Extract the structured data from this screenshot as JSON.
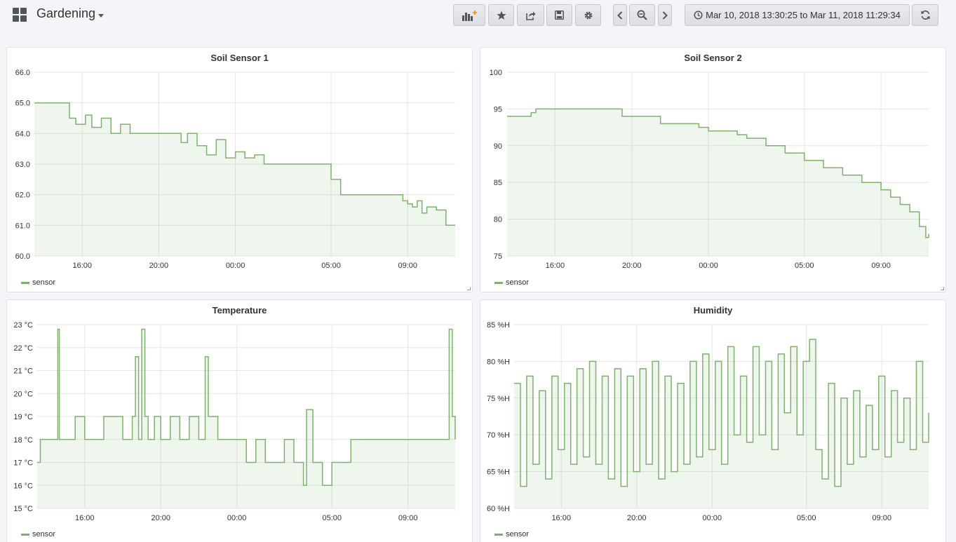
{
  "header": {
    "title": "Gardening",
    "time_range": "Mar 10, 2018 13:30:25 to Mar 11, 2018 11:29:34",
    "buttons": [
      "add-panel-icon",
      "star-icon",
      "share-icon",
      "save-icon",
      "gear-icon",
      "chevron-left-icon",
      "zoom-out-icon",
      "chevron-right-icon",
      "clock-icon",
      "refresh-icon"
    ]
  },
  "colors": {
    "series": "#7eb26d",
    "fill": "rgba(126,178,109,0.12)",
    "grid": "#e6e6e6"
  },
  "panels": [
    {
      "title": "Soil Sensor 1",
      "legend": "sensor",
      "chart_data": {
        "type": "line",
        "title": "Soil Sensor 1",
        "x_start": "2018-03-10 13:30",
        "x_end": "2018-03-11 11:29",
        "ylim": [
          60,
          66
        ],
        "yticks": [
          "66.0",
          "65.0",
          "64.0",
          "63.0",
          "62.0",
          "61.0",
          "60.0"
        ],
        "xticks": [
          "16:00",
          "20:00",
          "00:00",
          "05:00",
          "09:00"
        ],
        "series": [
          {
            "name": "sensor",
            "x": [
              "13:30",
              "15:00",
              "15:20",
              "15:40",
              "16:10",
              "16:30",
              "17:00",
              "17:30",
              "18:00",
              "18:30",
              "19:00",
              "20:00",
              "21:00",
              "21:10",
              "21:30",
              "22:00",
              "22:30",
              "23:00",
              "23:30",
              "00:00",
              "00:30",
              "01:00",
              "01:30",
              "02:00",
              "03:00",
              "04:00",
              "04:30",
              "04:45",
              "05:00",
              "05:30",
              "06:00",
              "07:00",
              "08:00",
              "08:30",
              "08:45",
              "09:00",
              "09:15",
              "09:30",
              "09:45",
              "10:00",
              "10:30",
              "11:00",
              "11:29"
            ],
            "values": [
              65,
              65,
              64.5,
              64.3,
              64.6,
              64.2,
              64.5,
              64,
              64.3,
              64,
              64,
              64,
              64,
              63.7,
              64,
              63.6,
              63.3,
              63.8,
              63.2,
              63.4,
              63.2,
              63.3,
              63,
              63,
              63,
              63,
              63,
              63,
              62.5,
              62,
              62,
              62,
              62,
              62,
              61.8,
              61.7,
              61.6,
              61.8,
              61.4,
              61.6,
              61.5,
              61,
              61
            ]
          }
        ]
      }
    },
    {
      "title": "Soil Sensor 2",
      "legend": "sensor",
      "chart_data": {
        "type": "line",
        "title": "Soil Sensor 2",
        "x_start": "2018-03-10 13:30",
        "x_end": "2018-03-11 11:29",
        "ylim": [
          75,
          100
        ],
        "yticks": [
          "100",
          "95",
          "90",
          "85",
          "80",
          "75"
        ],
        "xticks": [
          "16:00",
          "20:00",
          "00:00",
          "05:00",
          "09:00"
        ],
        "series": [
          {
            "name": "sensor",
            "x": [
              "13:30",
              "14:30",
              "14:45",
              "15:00",
              "16:00",
              "17:00",
              "18:00",
              "19:00",
              "19:30",
              "20:00",
              "21:00",
              "21:30",
              "22:00",
              "23:00",
              "23:30",
              "00:00",
              "01:00",
              "01:30",
              "02:00",
              "03:00",
              "04:00",
              "05:00",
              "06:00",
              "07:00",
              "08:00",
              "09:00",
              "09:30",
              "10:00",
              "10:30",
              "11:00",
              "11:20",
              "11:29"
            ],
            "values": [
              94,
              94,
              94.5,
              95,
              95,
              95,
              95,
              95,
              94,
              94,
              94,
              93,
              93,
              93,
              92.5,
              92,
              92,
              91.5,
              91,
              90,
              89,
              88,
              87,
              86,
              85,
              84,
              83,
              82,
              81,
              79,
              77.5,
              78
            ]
          }
        ]
      }
    },
    {
      "title": "Temperature",
      "legend": "sensor",
      "chart_data": {
        "type": "line",
        "title": "Temperature",
        "x_start": "2018-03-10 13:30",
        "x_end": "2018-03-11 11:29",
        "ylim": [
          15,
          23
        ],
        "yticks": [
          "23 °C",
          "22 °C",
          "21 °C",
          "20 °C",
          "19 °C",
          "18 °C",
          "17 °C",
          "16 °C",
          "15 °C"
        ],
        "xticks": [
          "16:00",
          "20:00",
          "00:00",
          "05:00",
          "09:00"
        ],
        "series": [
          {
            "name": "sensor",
            "x": [
              "13:30",
              "13:40",
              "14:00",
              "14:30",
              "14:35",
              "14:40",
              "15:00",
              "15:30",
              "16:00",
              "16:30",
              "17:00",
              "17:30",
              "18:00",
              "18:30",
              "18:40",
              "18:50",
              "19:00",
              "19:10",
              "19:20",
              "19:40",
              "20:00",
              "20:30",
              "21:00",
              "21:30",
              "22:00",
              "22:20",
              "22:30",
              "23:00",
              "23:30",
              "00:00",
              "00:30",
              "01:00",
              "01:30",
              "02:00",
              "02:30",
              "03:00",
              "03:30",
              "03:40",
              "04:00",
              "04:30",
              "05:00",
              "05:30",
              "06:00",
              "06:30",
              "07:00",
              "07:30",
              "08:00",
              "08:30",
              "09:00",
              "09:30",
              "10:00",
              "10:30",
              "11:00",
              "11:10",
              "11:20",
              "11:29"
            ],
            "values": [
              17,
              18,
              18,
              18,
              22.8,
              18,
              18,
              19,
              18,
              18,
              19,
              19,
              18,
              19,
              21.6,
              18,
              22.8,
              19,
              18,
              19,
              18,
              19,
              18,
              19,
              18,
              21.6,
              19,
              18,
              18,
              18,
              17,
              18,
              17,
              17,
              18,
              17,
              16,
              19.3,
              17,
              16,
              17,
              17,
              18,
              18,
              18,
              18,
              18,
              18,
              18,
              18,
              18,
              18,
              18,
              22.8,
              19,
              18
            ]
          }
        ]
      }
    },
    {
      "title": "Humidity",
      "legend": "sensor",
      "chart_data": {
        "type": "line",
        "title": "Humidity",
        "x_start": "2018-03-10 13:30",
        "x_end": "2018-03-11 11:29",
        "ylim": [
          60,
          85
        ],
        "yticks": [
          "85 %H",
          "80 %H",
          "75 %H",
          "70 %H",
          "65 %H",
          "60 %H"
        ],
        "xticks": [
          "16:00",
          "20:00",
          "00:00",
          "05:00",
          "09:00"
        ],
        "series": [
          {
            "name": "sensor",
            "x": [
              "13:30",
              "13:50",
              "14:10",
              "14:30",
              "14:50",
              "15:10",
              "15:30",
              "15:50",
              "16:10",
              "16:30",
              "16:50",
              "17:10",
              "17:30",
              "17:50",
              "18:10",
              "18:30",
              "18:50",
              "19:10",
              "19:30",
              "19:50",
              "20:10",
              "20:30",
              "20:50",
              "21:10",
              "21:30",
              "21:50",
              "22:10",
              "22:30",
              "22:50",
              "23:10",
              "23:30",
              "23:50",
              "00:10",
              "00:30",
              "00:50",
              "01:10",
              "01:30",
              "01:50",
              "02:10",
              "02:30",
              "02:50",
              "03:10",
              "03:30",
              "03:50",
              "04:10",
              "04:30",
              "04:50",
              "05:10",
              "05:30",
              "05:50",
              "06:10",
              "06:30",
              "06:50",
              "07:10",
              "07:30",
              "07:50",
              "08:10",
              "08:30",
              "08:50",
              "09:10",
              "09:30",
              "09:50",
              "10:10",
              "10:30",
              "10:50",
              "11:10",
              "11:29"
            ],
            "values": [
              77,
              63,
              78,
              66,
              76,
              64,
              78,
              68,
              77,
              66,
              79,
              67,
              80,
              66,
              78,
              64,
              79,
              63,
              78,
              65,
              79,
              66,
              80,
              64,
              78,
              65,
              77,
              66,
              80,
              67,
              81,
              68,
              80,
              66,
              82,
              70,
              78,
              69,
              82,
              70,
              80,
              68,
              81,
              73,
              82,
              70,
              80,
              83,
              68,
              64,
              77,
              63,
              75,
              66,
              76,
              67,
              74,
              68,
              78,
              67,
              76,
              69,
              75,
              68,
              80,
              69,
              73
            ]
          }
        ]
      }
    }
  ]
}
